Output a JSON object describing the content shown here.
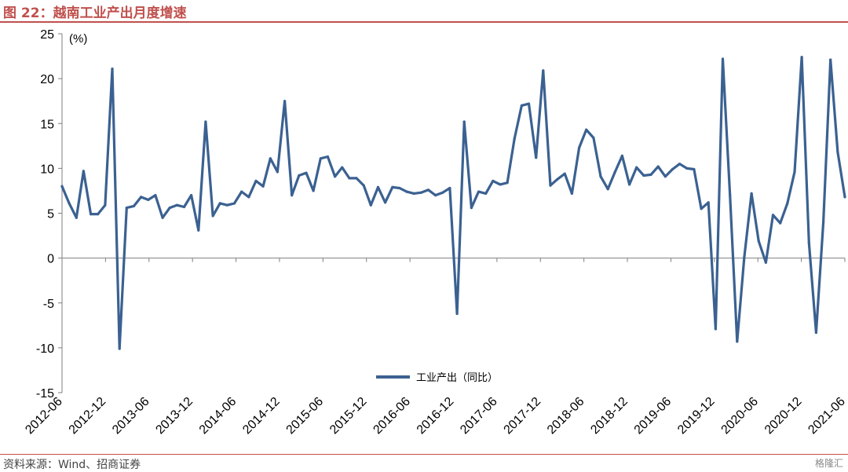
{
  "figure": {
    "title": "图 22：越南工业产出月度增速",
    "source": "资料来源：Wind、招商证券",
    "watermark": "格隆汇"
  },
  "chart_data": {
    "type": "line",
    "unit_label": "(%)",
    "ylim": [
      -15,
      25
    ],
    "yticks": [
      -15,
      -10,
      -5,
      0,
      5,
      10,
      15,
      20,
      25
    ],
    "x_tick_labels": [
      "2012-06",
      "2012-12",
      "2013-06",
      "2013-12",
      "2014-06",
      "2014-12",
      "2015-06",
      "2015-12",
      "2016-06",
      "2016-12",
      "2017-06",
      "2017-12",
      "2018-06",
      "2018-12",
      "2019-06",
      "2019-12",
      "2020-06",
      "2020-12",
      "2021-06"
    ],
    "x_start": "2012-06",
    "x_end": "2021-06",
    "grid": false,
    "legend_position": "bottom-center",
    "line_color": "#3b6191",
    "series": [
      {
        "name": "工业产出（同比）",
        "values": [
          8.0,
          6.1,
          4.5,
          9.7,
          4.9,
          4.9,
          5.9,
          21.1,
          -10.1,
          5.6,
          5.8,
          6.8,
          6.5,
          7.0,
          4.5,
          5.6,
          5.9,
          5.7,
          7.0,
          3.1,
          15.2,
          4.7,
          6.1,
          5.9,
          6.1,
          7.4,
          6.8,
          8.6,
          8.0,
          11.1,
          9.6,
          17.5,
          7.0,
          9.2,
          9.5,
          7.5,
          11.1,
          11.3,
          9.1,
          10.1,
          8.9,
          8.9,
          8.1,
          5.9,
          7.9,
          6.2,
          7.9,
          7.8,
          7.4,
          7.2,
          7.3,
          7.6,
          7.0,
          7.3,
          7.8,
          -6.2,
          15.2,
          5.6,
          7.4,
          7.2,
          8.6,
          8.2,
          8.4,
          13.3,
          17.0,
          17.2,
          11.2,
          20.9,
          8.1,
          8.8,
          9.4,
          7.2,
          12.3,
          14.3,
          13.4,
          9.1,
          7.7,
          9.6,
          11.4,
          8.2,
          10.1,
          9.2,
          9.3,
          10.2,
          9.1,
          9.9,
          10.5,
          10.0,
          9.9,
          5.5,
          6.2,
          -7.9,
          22.2,
          7.0,
          -9.3,
          0.1,
          7.2,
          1.9,
          -0.5,
          4.8,
          3.9,
          6.1,
          9.6,
          22.4,
          1.7,
          -8.3,
          4.0,
          22.1,
          11.8,
          6.8
        ]
      }
    ]
  }
}
